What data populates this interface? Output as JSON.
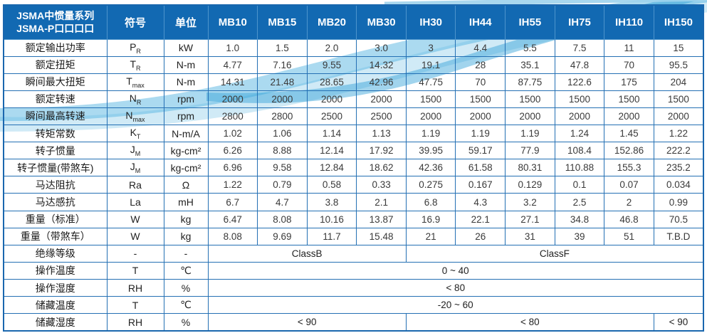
{
  "table": {
    "title_lines": [
      "JSMA中惯量系列",
      "JSMA-P口口口口"
    ],
    "header": {
      "symbol_label": "符号",
      "unit_label": "单位",
      "models": [
        "MB10",
        "MB15",
        "MB20",
        "MB30",
        "IH30",
        "IH44",
        "IH55",
        "IH75",
        "IH110",
        "IH150"
      ]
    },
    "rows": [
      {
        "label": "额定输出功率",
        "symbol": "P",
        "sub": "R",
        "unit": "kW",
        "values": [
          "1.0",
          "1.5",
          "2.0",
          "3.0",
          "3",
          "4.4",
          "5.5",
          "7.5",
          "11",
          "15"
        ]
      },
      {
        "label": "额定扭矩",
        "symbol": "T",
        "sub": "R",
        "unit": "N-m",
        "values": [
          "4.77",
          "7.16",
          "9.55",
          "14.32",
          "19.1",
          "28",
          "35.1",
          "47.8",
          "70",
          "95.5"
        ]
      },
      {
        "label": "瞬间最大扭矩",
        "symbol": "T",
        "sub": "max",
        "unit": "N-m",
        "values": [
          "14.31",
          "21.48",
          "28.65",
          "42.96",
          "47.75",
          "70",
          "87.75",
          "122.6",
          "175",
          "204"
        ]
      },
      {
        "label": "额定转速",
        "symbol": "N",
        "sub": "R",
        "unit": "rpm",
        "values": [
          "2000",
          "2000",
          "2000",
          "2000",
          "1500",
          "1500",
          "1500",
          "1500",
          "1500",
          "1500"
        ]
      },
      {
        "label": "瞬间最高转速",
        "symbol": "N",
        "sub": "max",
        "unit": "rpm",
        "values": [
          "2800",
          "2800",
          "2500",
          "2500",
          "2000",
          "2000",
          "2000",
          "2000",
          "2000",
          "2000"
        ]
      },
      {
        "label": "转矩常数",
        "symbol": "K",
        "sub": "T",
        "unit": "N-m/A",
        "values": [
          "1.02",
          "1.06",
          "1.14",
          "1.13",
          "1.19",
          "1.19",
          "1.19",
          "1.24",
          "1.45",
          "1.22"
        ]
      },
      {
        "label": "转子惯量",
        "symbol": "J",
        "sub": "M",
        "unit": "kg-cm²",
        "values": [
          "6.26",
          "8.88",
          "12.14",
          "17.92",
          "39.95",
          "59.17",
          "77.9",
          "108.4",
          "152.86",
          "222.2"
        ]
      },
      {
        "label": "转子惯量(带煞车)",
        "symbol": "J",
        "sub": "M",
        "unit": "kg-cm²",
        "values": [
          "6.96",
          "9.58",
          "12.84",
          "18.62",
          "42.36",
          "61.58",
          "80.31",
          "110.88",
          "155.3",
          "235.2"
        ]
      },
      {
        "label": "马达阻抗",
        "symbol": "Ra",
        "sub": "",
        "unit": "Ω",
        "values": [
          "1.22",
          "0.79",
          "0.58",
          "0.33",
          "0.275",
          "0.167",
          "0.129",
          "0.1",
          "0.07",
          "0.034"
        ]
      },
      {
        "label": "马达感抗",
        "symbol": "La",
        "sub": "",
        "unit": "mH",
        "values": [
          "6.7",
          "4.7",
          "3.8",
          "2.1",
          "6.8",
          "4.3",
          "3.2",
          "2.5",
          "2",
          "0.99"
        ]
      },
      {
        "label": "重量（标准）",
        "symbol": "W",
        "sub": "",
        "unit": "kg",
        "values": [
          "6.47",
          "8.08",
          "10.16",
          "13.87",
          "16.9",
          "22.1",
          "27.1",
          "34.8",
          "46.8",
          "70.5"
        ]
      },
      {
        "label": "重量（带煞车）",
        "symbol": "W",
        "sub": "",
        "unit": "kg",
        "values": [
          "8.08",
          "9.69",
          "11.7",
          "15.48",
          "21",
          "26",
          "31",
          "39",
          "51",
          "T.B.D"
        ]
      },
      {
        "label": "绝缘等级",
        "symbol": "-",
        "sub": "",
        "unit": "-",
        "spans": [
          {
            "text": "ClassB",
            "cols": 4
          },
          {
            "text": "ClassF",
            "cols": 6
          }
        ]
      },
      {
        "label": "操作温度",
        "symbol": "T",
        "sub": "",
        "unit": "℃",
        "spans": [
          {
            "text": "0 ~ 40",
            "cols": 10
          }
        ]
      },
      {
        "label": "操作湿度",
        "symbol": "RH",
        "sub": "",
        "unit": "%",
        "spans": [
          {
            "text": "< 80",
            "cols": 10
          }
        ]
      },
      {
        "label": "储藏温度",
        "symbol": "T",
        "sub": "",
        "unit": "℃",
        "spans": [
          {
            "text": "-20 ~ 60",
            "cols": 10
          }
        ]
      },
      {
        "label": "储藏湿度",
        "symbol": "RH",
        "sub": "",
        "unit": "%",
        "spans": [
          {
            "text": "< 90",
            "cols": 4
          },
          {
            "text": "< 80",
            "cols": 5
          },
          {
            "text": "< 90",
            "cols": 1
          }
        ]
      }
    ]
  },
  "colors": {
    "header_blue": "#1269b2",
    "border_blue": "#2470b4",
    "wave_light": "#a9d9ef",
    "wave_mid": "#3fa9dc",
    "text_dark": "#3a3a3a"
  }
}
